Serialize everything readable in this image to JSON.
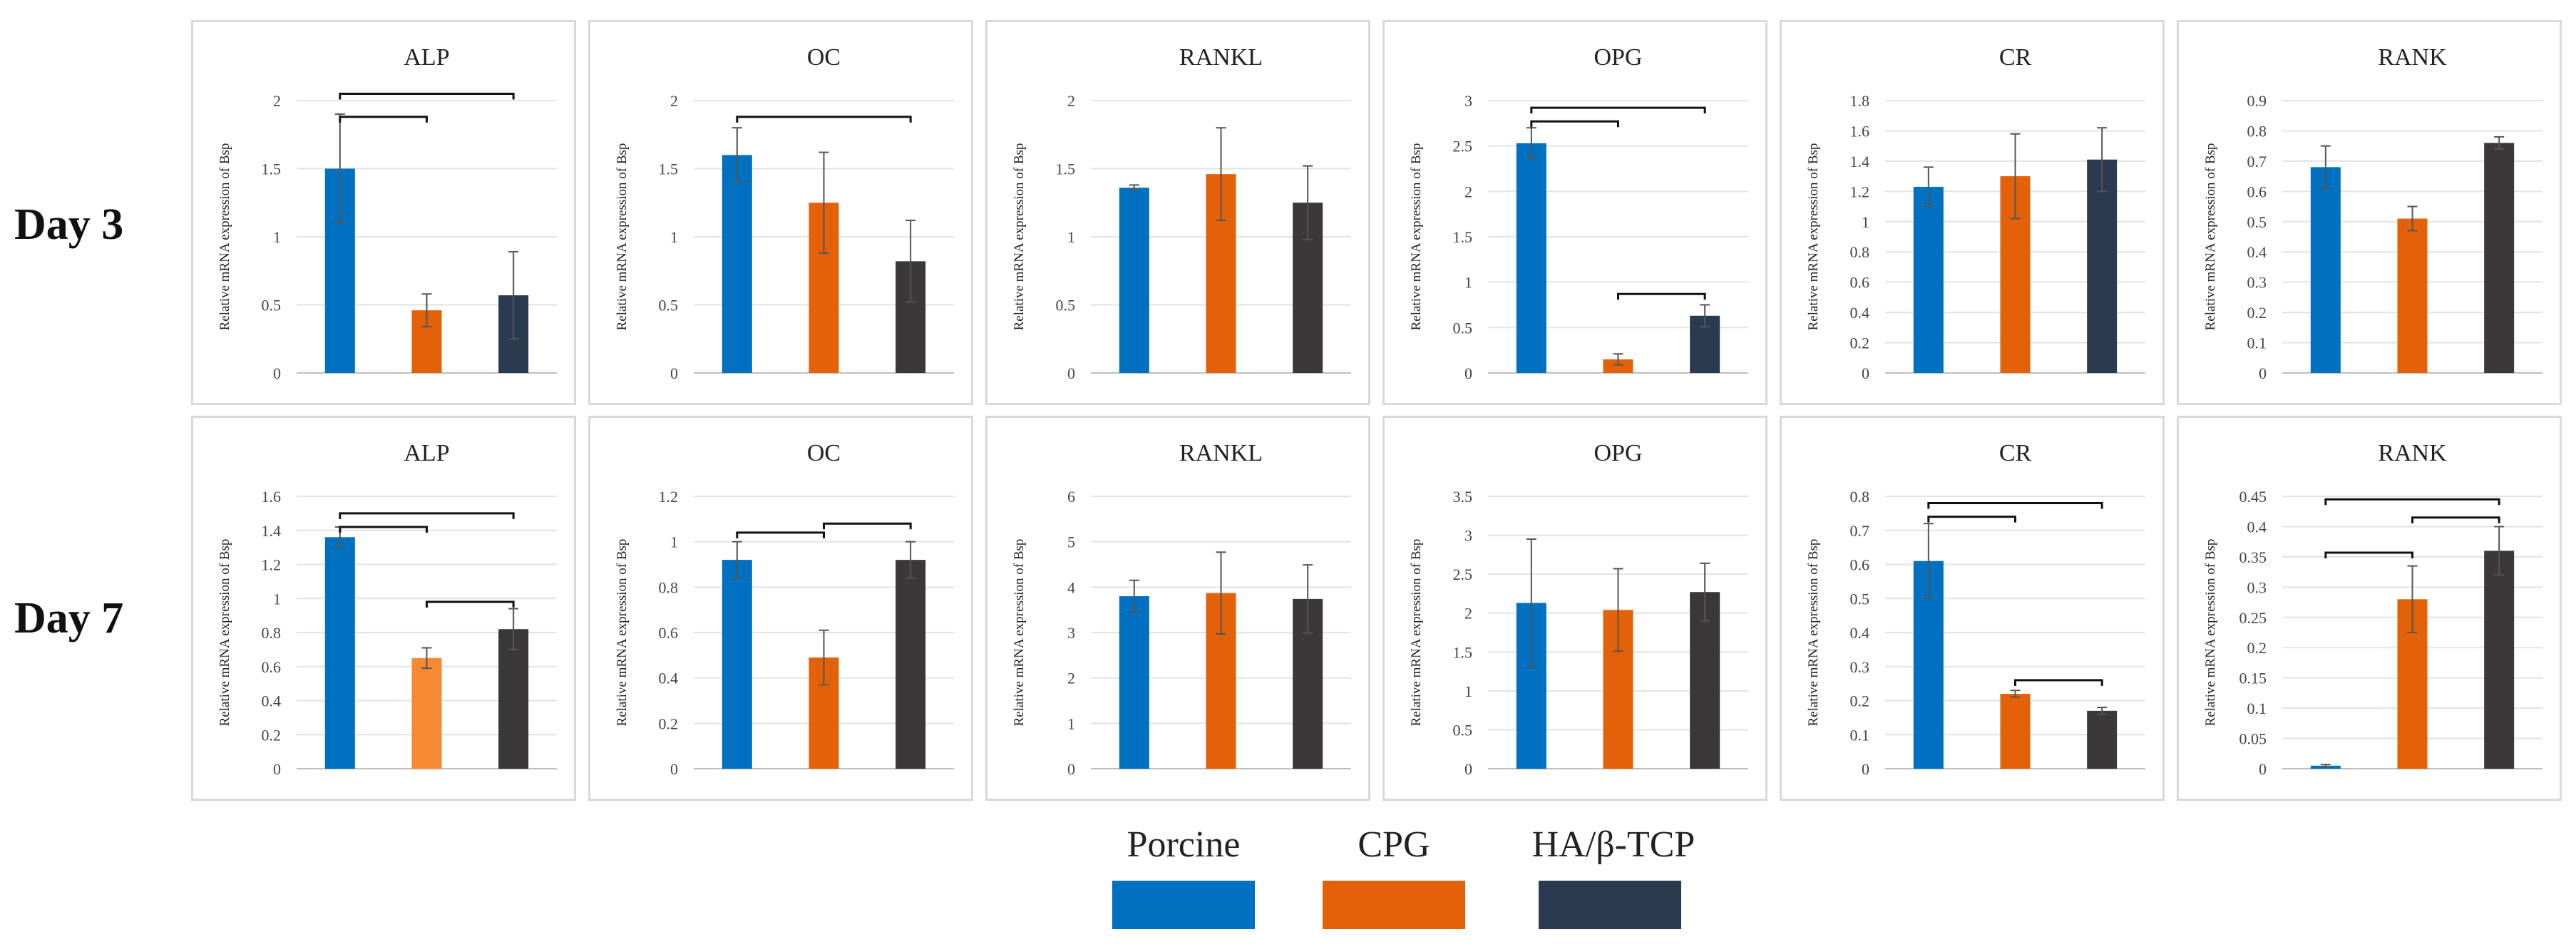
{
  "rows": [
    {
      "label": "Day 3"
    },
    {
      "label": "Day 7"
    }
  ],
  "legend": {
    "items": [
      {
        "label": "Porcine",
        "color": "#0070c0"
      },
      {
        "label": "CPG",
        "color": "#e36209"
      },
      {
        "label": "HA/β-TCP",
        "color": "#2a3b50"
      }
    ]
  },
  "chart_data": [
    {
      "type": "bar",
      "title": "ALP",
      "ylabel": "Relative mRNA expression of Bsp",
      "ylim": [
        0,
        2
      ],
      "ticks": [
        "0",
        "0.5",
        "1",
        "1.5",
        "2"
      ],
      "categories": [
        "Porcine",
        "CPG",
        "HA/β-TCP"
      ],
      "values": [
        1.5,
        0.46,
        0.57
      ],
      "errors": [
        0.4,
        0.12,
        0.32
      ],
      "colors": [
        "#0070c0",
        "#e36209",
        "#2a3b50"
      ],
      "brackets": [
        {
          "from": 0,
          "to": 2,
          "y": 2.05
        },
        {
          "from": 0,
          "to": 1,
          "y": 1.88
        }
      ]
    },
    {
      "type": "bar",
      "title": "OC",
      "ylabel": "Relative mRNA expression of Bsp",
      "ylim": [
        0,
        2
      ],
      "ticks": [
        "0",
        "0.5",
        "1",
        "1.5",
        "2"
      ],
      "categories": [
        "Porcine",
        "CPG",
        "HA/β-TCP"
      ],
      "values": [
        1.6,
        1.25,
        0.82
      ],
      "errors": [
        0.2,
        0.37,
        0.3
      ],
      "colors": [
        "#0070c0",
        "#e36209",
        "#3a3838"
      ],
      "brackets": [
        {
          "from": 0,
          "to": 2,
          "y": 1.88
        }
      ]
    },
    {
      "type": "bar",
      "title": "RANKL",
      "ylabel": "Relative mRNA expression of Bsp",
      "ylim": [
        0,
        2
      ],
      "ticks": [
        "0",
        "0.5",
        "1",
        "1.5",
        "2"
      ],
      "categories": [
        "Porcine",
        "CPG",
        "HA/β-TCP"
      ],
      "values": [
        1.36,
        1.46,
        1.25
      ],
      "errors": [
        0.02,
        0.34,
        0.27
      ],
      "colors": [
        "#0070c0",
        "#e36209",
        "#3a3838"
      ],
      "brackets": []
    },
    {
      "type": "bar",
      "title": "OPG",
      "ylabel": "Relative mRNA expression of Bsp",
      "ylim": [
        0,
        3
      ],
      "ticks": [
        "0",
        "0.5",
        "1",
        "1.5",
        "2",
        "2.5",
        "3"
      ],
      "categories": [
        "Porcine",
        "CPG",
        "HA/β-TCP"
      ],
      "values": [
        2.53,
        0.15,
        0.63
      ],
      "errors": [
        0.17,
        0.06,
        0.12
      ],
      "colors": [
        "#0070c0",
        "#e36209",
        "#2a3b50"
      ],
      "brackets": [
        {
          "from": 0,
          "to": 2,
          "y": 2.92
        },
        {
          "from": 0,
          "to": 1,
          "y": 2.77
        },
        {
          "from": 1,
          "to": 2,
          "y": 0.87
        }
      ]
    },
    {
      "type": "bar",
      "title": "CR",
      "ylabel": "Relative mRNA expression of Bsp",
      "ylim": [
        0,
        1.8
      ],
      "ticks": [
        "0",
        "0.2",
        "0.4",
        "0.6",
        "0.8",
        "1",
        "1.2",
        "1.4",
        "1.6",
        "1.8"
      ],
      "categories": [
        "Porcine",
        "CPG",
        "HA/β-TCP"
      ],
      "values": [
        1.23,
        1.3,
        1.41
      ],
      "errors": [
        0.13,
        0.28,
        0.21
      ],
      "colors": [
        "#0070c0",
        "#e36209",
        "#2a3b50"
      ],
      "brackets": []
    },
    {
      "type": "bar",
      "title": "RANK",
      "ylabel": "Relative mRNA expression of Bsp",
      "ylim": [
        0,
        0.9
      ],
      "ticks": [
        "0",
        "0.1",
        "0.2",
        "0.3",
        "0.4",
        "0.5",
        "0.6",
        "0.7",
        "0.8",
        "0.9"
      ],
      "categories": [
        "Porcine",
        "CPG",
        "HA/β-TCP"
      ],
      "values": [
        0.68,
        0.51,
        0.76
      ],
      "errors": [
        0.07,
        0.04,
        0.02
      ],
      "colors": [
        "#0070c0",
        "#e36209",
        "#3a3838"
      ],
      "brackets": []
    },
    {
      "type": "bar",
      "title": "ALP",
      "ylabel": "Relative mRNA expression of Bsp",
      "ylim": [
        0,
        1.6
      ],
      "ticks": [
        "0",
        "0.2",
        "0.4",
        "0.6",
        "0.8",
        "1",
        "1.2",
        "1.4",
        "1.6"
      ],
      "categories": [
        "Porcine",
        "CPG",
        "HA/β-TCP"
      ],
      "values": [
        1.36,
        0.65,
        0.82
      ],
      "errors": [
        0.06,
        0.06,
        0.12
      ],
      "colors": [
        "#0070c0",
        "#f58a32",
        "#3a3838"
      ],
      "brackets": [
        {
          "from": 0,
          "to": 2,
          "y": 1.5
        },
        {
          "from": 0,
          "to": 1,
          "y": 1.42
        },
        {
          "from": 1,
          "to": 2,
          "y": 0.98
        }
      ]
    },
    {
      "type": "bar",
      "title": "OC",
      "ylabel": "Relative mRNA expression of Bsp",
      "ylim": [
        0,
        1.2
      ],
      "ticks": [
        "0",
        "0.2",
        "0.4",
        "0.6",
        "0.8",
        "1",
        "1.2"
      ],
      "categories": [
        "Porcine",
        "CPG",
        "HA/β-TCP"
      ],
      "values": [
        0.92,
        0.49,
        0.92
      ],
      "errors": [
        0.08,
        0.12,
        0.08
      ],
      "colors": [
        "#0070c0",
        "#e36209",
        "#3a3838"
      ],
      "brackets": [
        {
          "from": 0,
          "to": 1,
          "y": 1.04
        },
        {
          "from": 1,
          "to": 2,
          "y": 1.08
        }
      ]
    },
    {
      "type": "bar",
      "title": "RANKL",
      "ylabel": "Relative mRNA expression of Bsp",
      "ylim": [
        0,
        6
      ],
      "ticks": [
        "0",
        "1",
        "2",
        "3",
        "4",
        "5",
        "6"
      ],
      "categories": [
        "Porcine",
        "CPG",
        "HA/β-TCP"
      ],
      "values": [
        3.8,
        3.87,
        3.74
      ],
      "errors": [
        0.35,
        0.9,
        0.75
      ],
      "colors": [
        "#0070c0",
        "#e36209",
        "#3a3838"
      ],
      "brackets": []
    },
    {
      "type": "bar",
      "title": "OPG",
      "ylabel": "Relative mRNA expression of Bsp",
      "ylim": [
        0,
        3.5
      ],
      "ticks": [
        "0",
        "0.5",
        "1",
        "1.5",
        "2",
        "2.5",
        "3",
        "3.5"
      ],
      "categories": [
        "Porcine",
        "CPG",
        "HA/β-TCP"
      ],
      "values": [
        2.13,
        2.04,
        2.27
      ],
      "errors": [
        0.82,
        0.53,
        0.37
      ],
      "colors": [
        "#0070c0",
        "#e36209",
        "#3a3838"
      ],
      "brackets": []
    },
    {
      "type": "bar",
      "title": "CR",
      "ylabel": "Relative mRNA expression of Bsp",
      "ylim": [
        0,
        0.8
      ],
      "ticks": [
        "0",
        "0.1",
        "0.2",
        "0.3",
        "0.4",
        "0.5",
        "0.6",
        "0.7",
        "0.8"
      ],
      "categories": [
        "Porcine",
        "CPG",
        "HA/β-TCP"
      ],
      "values": [
        0.61,
        0.22,
        0.17
      ],
      "errors": [
        0.11,
        0.01,
        0.01
      ],
      "colors": [
        "#0070c0",
        "#e36209",
        "#3a3838"
      ],
      "brackets": [
        {
          "from": 0,
          "to": 2,
          "y": 0.78
        },
        {
          "from": 0,
          "to": 1,
          "y": 0.74
        },
        {
          "from": 1,
          "to": 2,
          "y": 0.26
        }
      ]
    },
    {
      "type": "bar",
      "title": "RANK",
      "ylabel": "Relative mRNA expression of Bsp",
      "ylim": [
        0,
        0.45
      ],
      "ticks": [
        "0",
        "0.05",
        "0.1",
        "0.15",
        "0.2",
        "0.25",
        "0.3",
        "0.35",
        "0.4",
        "0.45"
      ],
      "categories": [
        "Porcine",
        "CPG",
        "HA/β-TCP"
      ],
      "values": [
        0.005,
        0.28,
        0.36
      ],
      "errors": [
        0.002,
        0.055,
        0.04
      ],
      "colors": [
        "#0070c0",
        "#e36209",
        "#3a3838"
      ],
      "brackets": [
        {
          "from": 0,
          "to": 2,
          "y": 0.445
        },
        {
          "from": 1,
          "to": 2,
          "y": 0.415
        },
        {
          "from": 0,
          "to": 1,
          "y": 0.357
        }
      ]
    }
  ]
}
